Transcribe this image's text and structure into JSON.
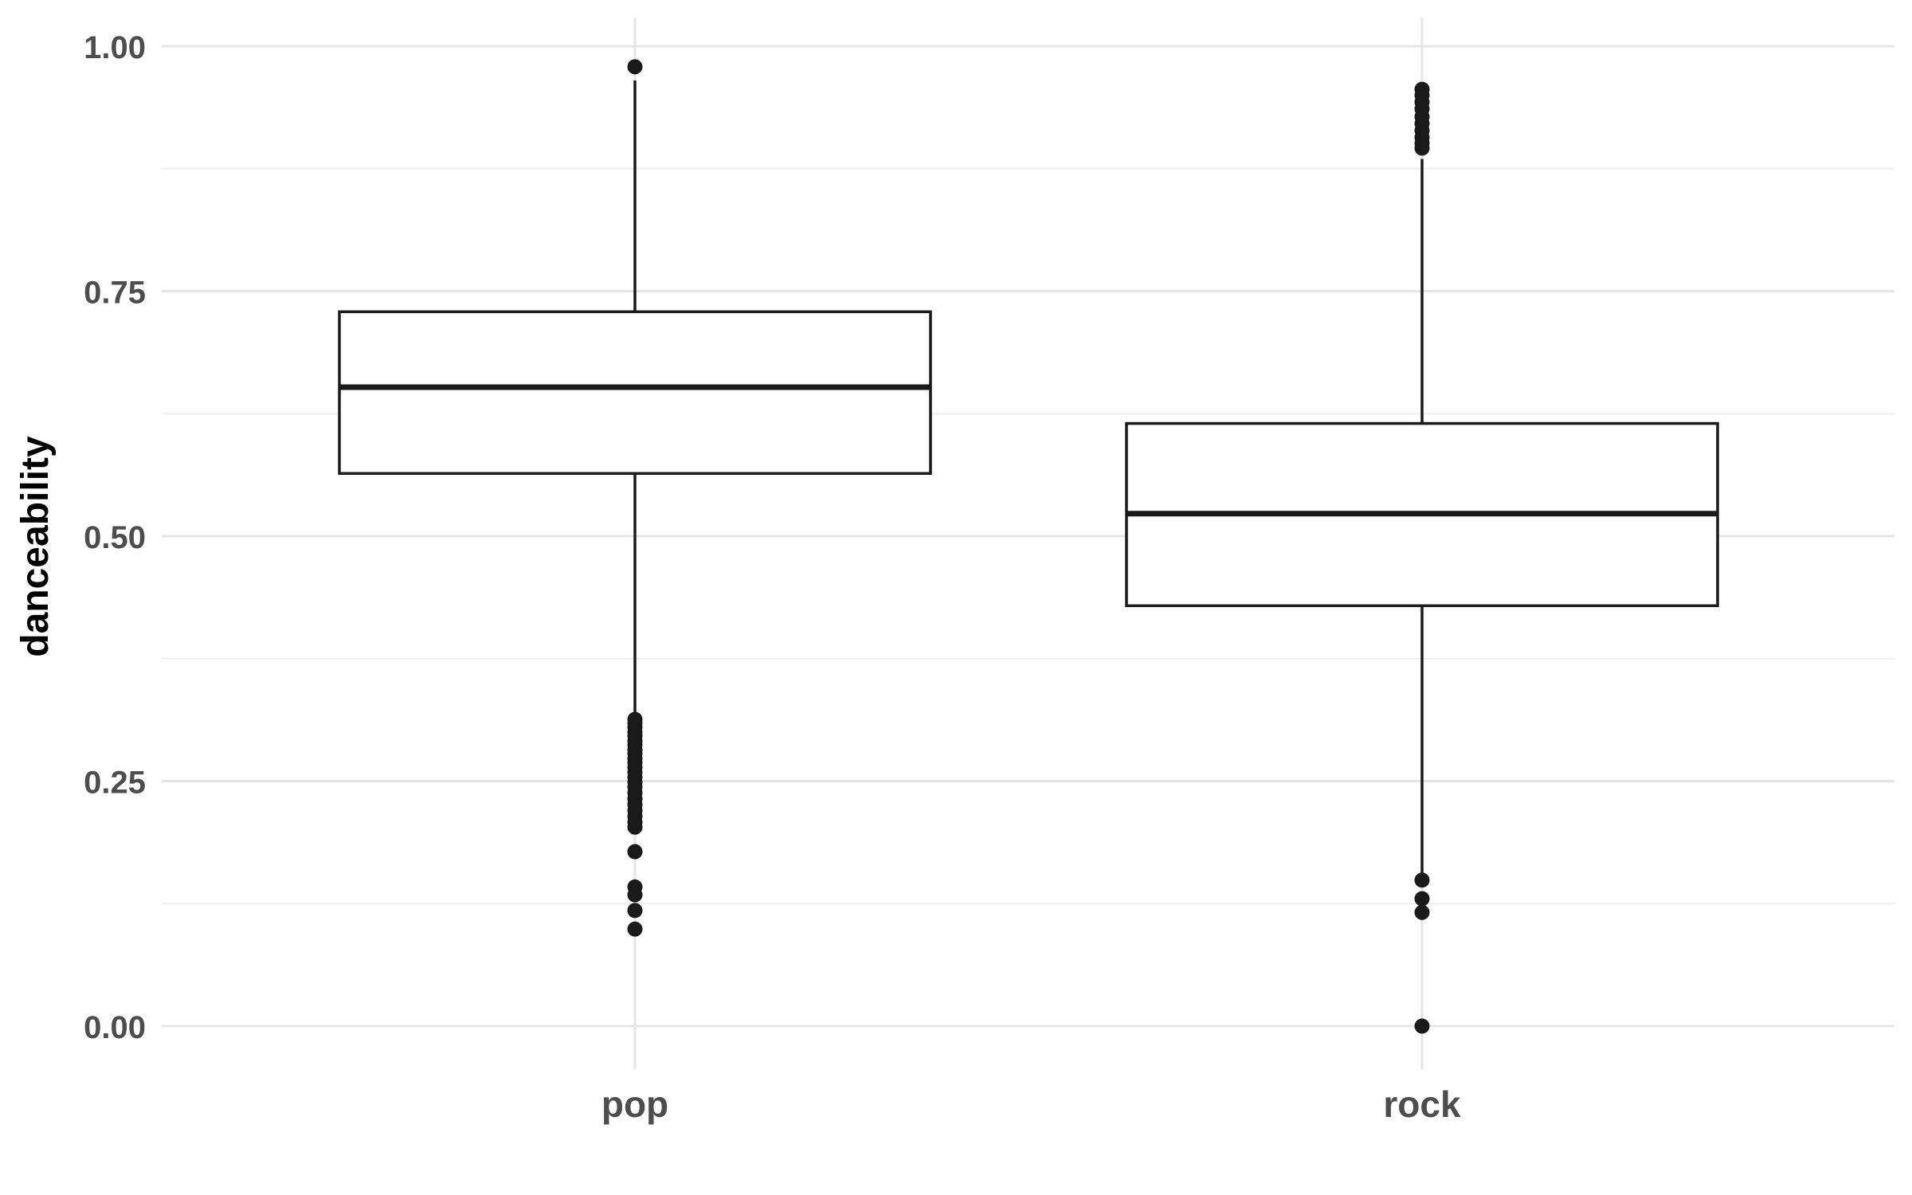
{
  "chart_data": {
    "type": "boxplot",
    "title": "",
    "xlabel": "",
    "ylabel": "danceability",
    "ylim": [
      -0.04,
      1.03
    ],
    "y_ticks": [
      {
        "value": 0.0,
        "label": "0.00"
      },
      {
        "value": 0.25,
        "label": "0.25"
      },
      {
        "value": 0.5,
        "label": "0.50"
      },
      {
        "value": 0.75,
        "label": "0.75"
      },
      {
        "value": 1.0,
        "label": "1.00"
      }
    ],
    "y_minor_ticks": [
      0.125,
      0.375,
      0.625,
      0.875
    ],
    "grid": true,
    "categories": [
      "pop",
      "rock"
    ],
    "boxes": [
      {
        "category": "pop",
        "q1": 0.564,
        "median": 0.652,
        "q3": 0.729,
        "whisker_low": 0.315,
        "whisker_high": 0.965,
        "outliers": [
          0.979,
          0.313,
          0.309,
          0.305,
          0.3,
          0.296,
          0.291,
          0.287,
          0.282,
          0.278,
          0.273,
          0.269,
          0.264,
          0.259,
          0.254,
          0.249,
          0.244,
          0.238,
          0.232,
          0.226,
          0.22,
          0.214,
          0.208,
          0.203,
          0.178,
          0.142,
          0.134,
          0.118,
          0.099
        ]
      },
      {
        "category": "rock",
        "q1": 0.429,
        "median": 0.523,
        "q3": 0.615,
        "whisker_low": 0.155,
        "whisker_high": 0.885,
        "outliers": [
          0.956,
          0.95,
          0.943,
          0.936,
          0.928,
          0.921,
          0.914,
          0.907,
          0.901,
          0.896,
          0.149,
          0.13,
          0.116,
          0.0
        ]
      }
    ],
    "colors": {
      "box_stroke": "#1a1a1a",
      "box_fill": "#ffffff",
      "outlier": "#1a1a1a",
      "grid_major": "#e5e5e5",
      "grid_minor": "#efefef",
      "tick_text": "#4d4d4d",
      "axis_title": "#000000"
    }
  }
}
